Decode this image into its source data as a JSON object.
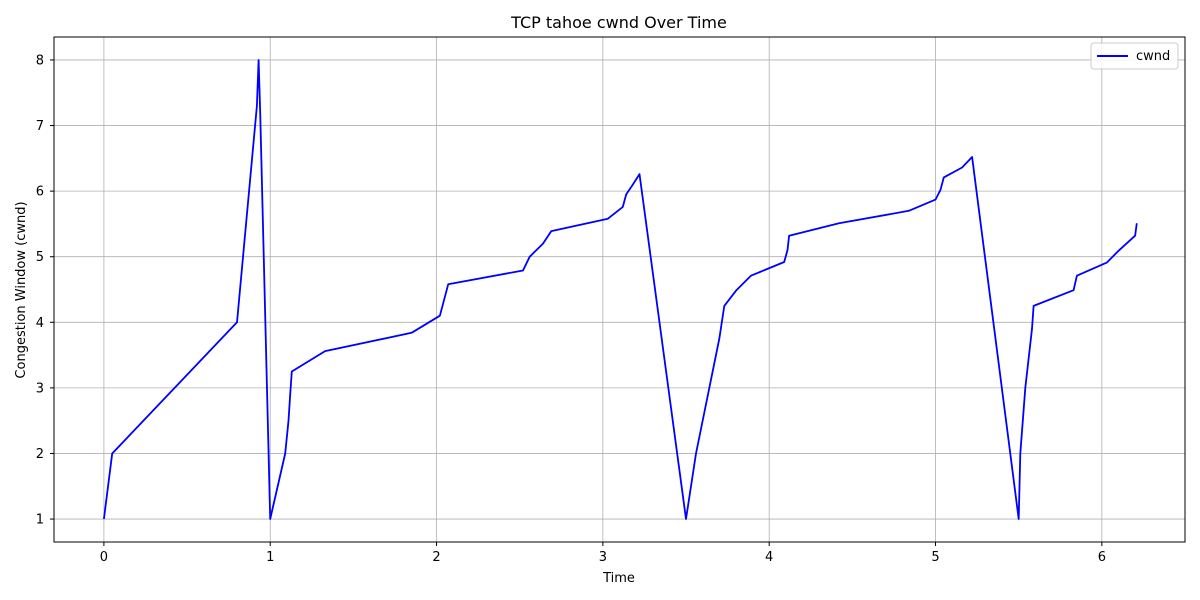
{
  "chart_data": {
    "type": "line",
    "title": "TCP tahoe cwnd Over Time",
    "xlabel": "Time",
    "ylabel": "Congestion Window (cwnd)",
    "xlim": [
      -0.3,
      6.5
    ],
    "ylim": [
      0.65,
      8.35
    ],
    "xticks": [
      0,
      1,
      2,
      3,
      4,
      5,
      6
    ],
    "yticks": [
      1,
      2,
      3,
      4,
      5,
      6,
      7,
      8
    ],
    "grid": true,
    "legend_position": "top-right",
    "series": [
      {
        "name": "cwnd",
        "color": "#0000ff",
        "x": [
          0.0,
          0.05,
          0.8,
          0.92,
          0.93,
          0.94,
          1.0,
          1.09,
          1.11,
          1.12,
          1.13,
          1.33,
          1.85,
          2.02,
          2.07,
          2.52,
          2.56,
          2.64,
          2.69,
          3.03,
          3.12,
          3.14,
          3.18,
          3.22,
          3.5,
          3.56,
          3.7,
          3.73,
          3.8,
          3.89,
          4.09,
          4.11,
          4.12,
          4.42,
          4.84,
          5.0,
          5.03,
          5.05,
          5.16,
          5.22,
          5.5,
          5.51,
          5.54,
          5.58,
          5.59,
          5.83,
          5.85,
          6.03,
          6.1,
          6.2,
          6.21
        ],
        "y": [
          1,
          2,
          4,
          7.3,
          8,
          7.2,
          1,
          2,
          2.5,
          2.9,
          3.25,
          3.56,
          3.84,
          4.1,
          4.58,
          4.79,
          5.0,
          5.2,
          5.39,
          5.58,
          5.76,
          5.95,
          6.1,
          6.26,
          1,
          2,
          3.75,
          4.25,
          4.48,
          4.71,
          4.92,
          5.1,
          5.32,
          5.51,
          5.7,
          5.87,
          6.02,
          6.21,
          6.36,
          6.52,
          1,
          2,
          3,
          3.9,
          4.25,
          4.49,
          4.71,
          4.91,
          5.09,
          5.32,
          5.51
        ]
      }
    ]
  }
}
